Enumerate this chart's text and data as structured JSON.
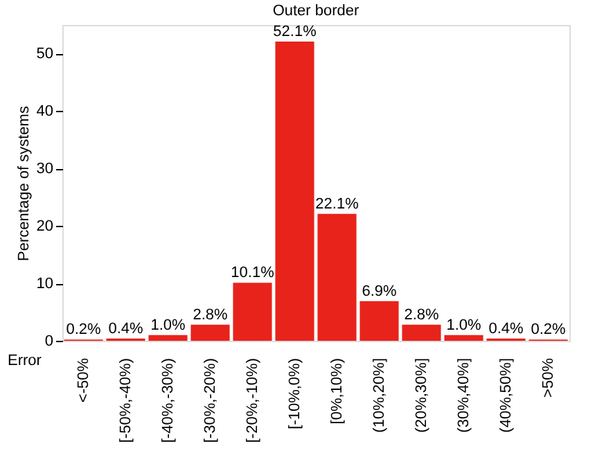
{
  "chart_data": {
    "type": "bar",
    "title": "Outer border",
    "xlabel": "Error",
    "ylabel": "Percentage of systems",
    "categories": [
      "<-50%",
      "[-50%,-40%)",
      "[-40%,-30%)",
      "[-30%,-20%)",
      "[-20%,-10%)",
      "[-10%,0%)",
      "[0%,10%)",
      "(10%,20%]",
      "(20%,30%]",
      "(30%,40%]",
      "(40%,50%]",
      ">50%"
    ],
    "values": [
      0.2,
      0.4,
      1.0,
      2.8,
      10.1,
      52.1,
      22.1,
      6.9,
      2.8,
      1.0,
      0.4,
      0.2
    ],
    "value_labels": [
      "0.2%",
      "0.4%",
      "1.0%",
      "2.8%",
      "10.1%",
      "52.1%",
      "22.1%",
      "6.9%",
      "2.8%",
      "1.0%",
      "0.4%",
      "0.2%"
    ],
    "color": "#e8231b",
    "ylim": [
      0,
      55
    ],
    "yticks": [
      0,
      10,
      20,
      30,
      40,
      50
    ],
    "grid": false
  }
}
